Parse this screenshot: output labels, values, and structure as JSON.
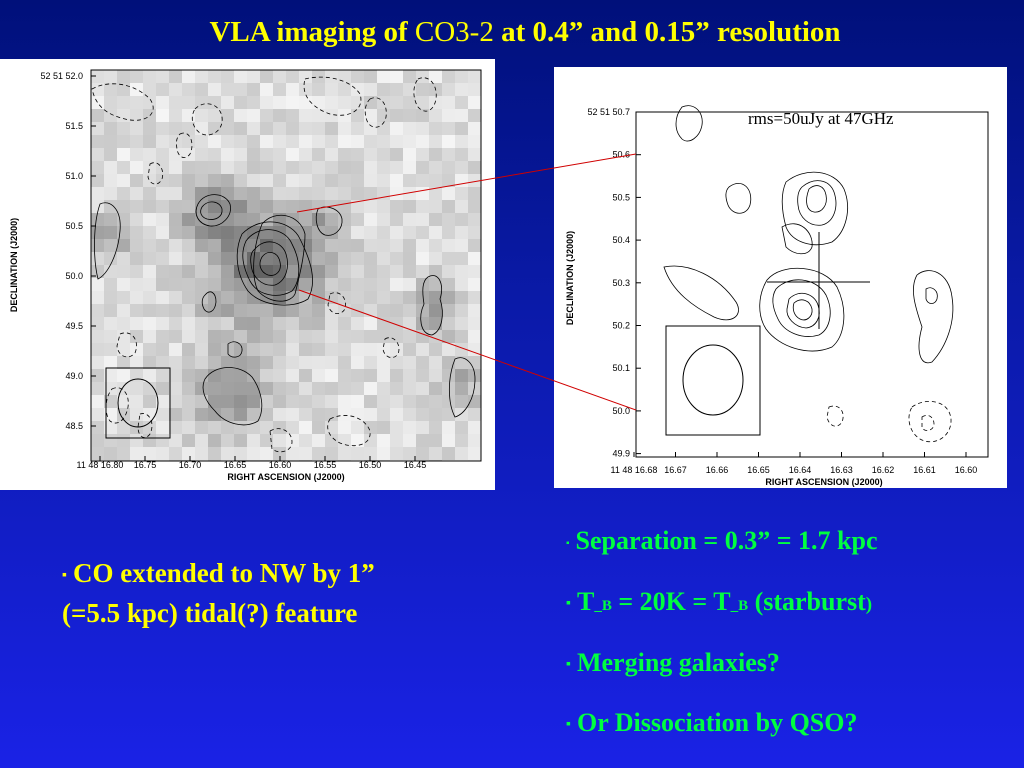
{
  "title": {
    "part1": "VLA imaging of ",
    "part2": "CO3-2",
    "part3": " at 0.4” and 0.15” resolution"
  },
  "left_plot": {
    "y_ticks": [
      "52 51 52.0",
      "51.5",
      "51.0",
      "50.5",
      "50.0",
      "49.5",
      "49.0",
      "48.5"
    ],
    "x_ticks": [
      "11 48 16.80",
      "16.75",
      "16.70",
      "16.65",
      "16.60",
      "16.55",
      "16.50",
      "16.45"
    ],
    "xlabel": "RIGHT ASCENSION (J2000)",
    "ylabel": "DECLINATION (J2000)"
  },
  "right_plot": {
    "y_ticks": [
      "52 51 50.7",
      "50.6",
      "50.5",
      "50.4",
      "50.3",
      "50.2",
      "50.1",
      "50.0",
      "49.9"
    ],
    "x_ticks": [
      "11 48 16.68",
      "16.67",
      "16.66",
      "16.65",
      "16.64",
      "16.63",
      "16.62",
      "16.61",
      "16.60"
    ],
    "xlabel": "RIGHT ASCENSION (J2000)",
    "ylabel": "DECLINATION (J2000)",
    "rms": "rms=50uJy at 47GHz"
  },
  "bullets_left": {
    "marker": "▪",
    "line1": "CO extended to NW by 1”",
    "line2": "(=5.5 kpc)  tidal(?)  feature"
  },
  "bullets_right": {
    "marker": "▪",
    "b1": "Separation = 0.3” = 1.7 kpc",
    "b2_t1": "T",
    "b2_s1": "_B",
    "b2_mid": " = 20K  =  T",
    "b2_s2": "_B",
    "b2_end": " (starburst",
    "b2_close": ")",
    "b3": "Merging galaxies?",
    "b4": "Or Dissociation by QSO?"
  },
  "colors": {
    "title": "#ffff00",
    "left_text": "#ffff00",
    "right_text": "#00ff40",
    "connector": "#d00000"
  }
}
